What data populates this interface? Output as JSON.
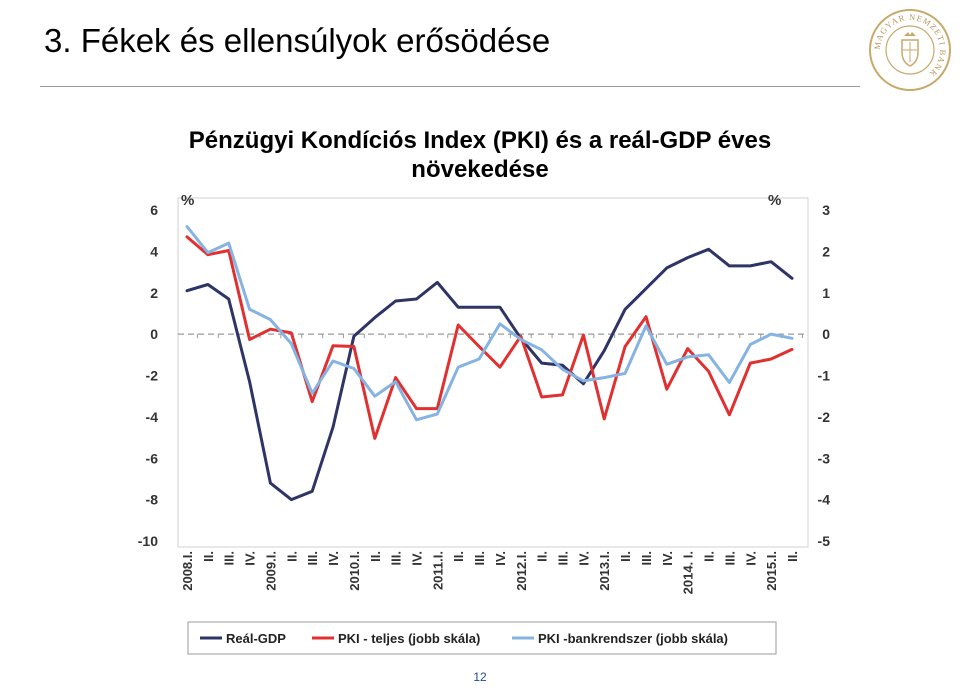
{
  "slide": {
    "title": "3. Fékek és ellensúlyok erősödése",
    "page_number": "12",
    "logo_icon": "mnb-seal-icon",
    "logo_text": "MAGYAR NEMZETI BANK"
  },
  "chart_data": {
    "type": "line",
    "title_line1": "Pénzügyi Kondíciós Index (PKI) és a reál-GDP éves",
    "title_line2": "növekedése",
    "left_axis_unit": "%",
    "right_axis_unit": "%",
    "ylim_left": [
      -10,
      6
    ],
    "ylim_right": [
      -5,
      3
    ],
    "left_ticks": [
      "6",
      "4",
      "2",
      "0",
      "-2",
      "-4",
      "-6",
      "-8",
      "-10"
    ],
    "right_ticks": [
      "3",
      "2",
      "1",
      "0",
      "-1",
      "-2",
      "-3",
      "-4",
      "-5"
    ],
    "x_labels": [
      "2008.I.",
      "II.",
      "III.",
      "IV.",
      "2009.I.",
      "II.",
      "III.",
      "IV.",
      "2010.I.",
      "II.",
      "III.",
      "IV.",
      "2011.I.",
      "II.",
      "III.",
      "IV.",
      "2012.I.",
      "II.",
      "III.",
      "IV.",
      "2013.I.",
      "II.",
      "III.",
      "IV.",
      "2014. I.",
      "II.",
      "III.",
      "IV.",
      "2015.I.",
      "II."
    ],
    "grid": false,
    "legend_position": "bottom",
    "series": [
      {
        "name": "Reál-GDP",
        "axis": "left",
        "color": "#2e3466",
        "values": [
          2.1,
          2.4,
          1.7,
          -2.3,
          -7.2,
          -8.0,
          -7.6,
          -4.5,
          -0.1,
          0.8,
          1.6,
          1.7,
          2.5,
          1.3,
          1.3,
          1.3,
          -0.2,
          -1.4,
          -1.5,
          -2.4,
          -0.8,
          1.2,
          2.2,
          3.2,
          3.7,
          4.1,
          3.3,
          3.3,
          3.5,
          2.7
        ]
      },
      {
        "name": "PKI - teljes (jobb skála)",
        "axis": "right",
        "color": "#e03030",
        "values": [
          2.35,
          1.92,
          2.02,
          -0.13,
          0.12,
          0.03,
          -1.63,
          -0.28,
          -0.3,
          -2.52,
          -1.05,
          -1.8,
          -1.8,
          0.22,
          -0.3,
          -0.8,
          -0.05,
          -1.52,
          -1.47,
          -0.02,
          -2.05,
          -0.3,
          0.42,
          -1.33,
          -0.35,
          -0.9,
          -1.95,
          -0.7,
          -0.6,
          -0.37
        ]
      },
      {
        "name": "PKI -bankrendszer (jobb skála)",
        "axis": "right",
        "color": "#85b4e2",
        "values": [
          2.6,
          1.97,
          2.2,
          0.6,
          0.35,
          -0.23,
          -1.43,
          -0.65,
          -0.83,
          -1.5,
          -1.15,
          -2.07,
          -1.93,
          -0.8,
          -0.6,
          0.25,
          -0.13,
          -0.38,
          -0.85,
          -1.13,
          -1.05,
          -0.95,
          0.2,
          -0.73,
          -0.55,
          -0.5,
          -1.17,
          -0.25,
          0.0,
          -0.1
        ]
      }
    ]
  }
}
